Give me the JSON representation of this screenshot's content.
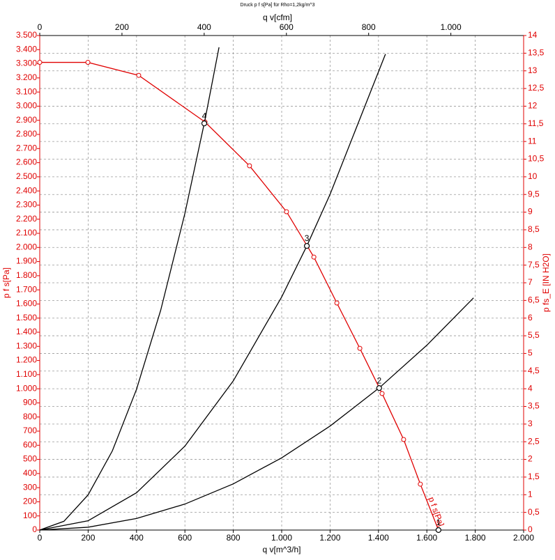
{
  "chart_data": {
    "type": "line",
    "title": "Druck p f s[Pa] für Rho=1,2kg/m^3",
    "x_label": "q v[m^3/h]",
    "x2_label": "q v[cfm]",
    "y_label": "p f s[Pa]",
    "y2_label": "p fs_E [IN H2O]",
    "xlim": [
      0,
      2000
    ],
    "xticks": [
      0,
      200,
      400,
      600,
      800,
      {
        "value": 1000,
        "label": "1.000"
      },
      {
        "value": 1200,
        "label": "1.200"
      },
      {
        "value": 1400,
        "label": "1.400"
      },
      {
        "value": 1600,
        "label": "1.600"
      },
      {
        "value": 1800,
        "label": "1.800"
      },
      {
        "value": 2000,
        "label": "2.000"
      }
    ],
    "x2lim": [
      0,
      1177
    ],
    "x2ticks": [
      0,
      200,
      400,
      600,
      800,
      {
        "value": 1000,
        "label": "1.000"
      }
    ],
    "ylim": [
      0,
      3500
    ],
    "yticks": [
      0,
      100,
      200,
      300,
      400,
      500,
      600,
      700,
      800,
      900,
      {
        "value": 1000,
        "label": "1.000"
      },
      {
        "value": 1100,
        "label": "1.100"
      },
      {
        "value": 1200,
        "label": "1.200"
      },
      {
        "value": 1300,
        "label": "1.300"
      },
      {
        "value": 1400,
        "label": "1.400"
      },
      {
        "value": 1500,
        "label": "1.500"
      },
      {
        "value": 1600,
        "label": "1.600"
      },
      {
        "value": 1700,
        "label": "1.700"
      },
      {
        "value": 1800,
        "label": "1.800"
      },
      {
        "value": 1900,
        "label": "1.900"
      },
      {
        "value": 2000,
        "label": "2.000"
      },
      {
        "value": 2100,
        "label": "2.100"
      },
      {
        "value": 2200,
        "label": "2.200"
      },
      {
        "value": 2300,
        "label": "2.300"
      },
      {
        "value": 2400,
        "label": "2.400"
      },
      {
        "value": 2500,
        "label": "2.500"
      },
      {
        "value": 2600,
        "label": "2.600"
      },
      {
        "value": 2700,
        "label": "2.700"
      },
      {
        "value": 2800,
        "label": "2.800"
      },
      {
        "value": 2900,
        "label": "2.900"
      },
      {
        "value": 3000,
        "label": "3.000"
      },
      {
        "value": 3100,
        "label": "3.100"
      },
      {
        "value": 3200,
        "label": "3.200"
      },
      {
        "value": 3300,
        "label": "3.300"
      },
      {
        "value": 3400,
        "label": "3.400"
      },
      {
        "value": 3500,
        "label": "3.500"
      }
    ],
    "y2lim": [
      0,
      14
    ],
    "y2ticks": [
      0,
      {
        "value": 0.5,
        "label": "0,5"
      },
      1,
      {
        "value": 1.5,
        "label": "1,5"
      },
      2,
      {
        "value": 2.5,
        "label": "2,5"
      },
      3,
      {
        "value": 3.5,
        "label": "3,5"
      },
      4,
      {
        "value": 4.5,
        "label": "4,5"
      },
      5,
      {
        "value": 5.5,
        "label": "5,5"
      },
      6,
      {
        "value": 6.5,
        "label": "6,5"
      },
      7,
      {
        "value": 7.5,
        "label": "7,5"
      },
      8,
      {
        "value": 8.5,
        "label": "8,5"
      },
      9,
      {
        "value": 9.5,
        "label": "9,5"
      },
      10,
      {
        "value": 10.5,
        "label": "10,5"
      },
      11,
      {
        "value": 11.5,
        "label": "11,5"
      },
      12,
      {
        "value": 12.5,
        "label": "12,5"
      },
      13,
      {
        "value": 13.5,
        "label": "13,5"
      },
      14
    ],
    "grid": true,
    "axis_color": "#e00000",
    "series": [
      {
        "name": "p f s[Pa]",
        "color": "#e00000",
        "markers": true,
        "x": [
          0,
          199,
          409,
          683,
          867,
          1020,
          1133,
          1228,
          1323,
          1415,
          1504,
          1573,
          1648
        ],
        "values": [
          3310,
          3310,
          3218,
          2888,
          2578,
          2253,
          1932,
          1607,
          1286,
          966,
          641,
          325,
          0
        ]
      },
      {
        "color": "#000000",
        "markers": false,
        "x": [
          0,
          100,
          200,
          300,
          400,
          500,
          600,
          683,
          741
        ],
        "values": [
          0,
          62,
          249,
          560,
          996,
          1556,
          2241,
          2903,
          3417
        ]
      },
      {
        "color": "#000000",
        "markers": false,
        "x": [
          0,
          200,
          400,
          600,
          800,
          1000,
          1104,
          1200,
          1429
        ],
        "values": [
          0,
          66,
          264,
          594,
          1056,
          1650,
          2011,
          2376,
          3369
        ]
      },
      {
        "color": "#000000",
        "markers": false,
        "x": [
          0,
          200,
          400,
          600,
          800,
          1000,
          1200,
          1403,
          1600,
          1793
        ],
        "values": [
          0,
          20,
          82,
          184,
          327,
          511,
          736,
          1006,
          1308,
          1643
        ]
      }
    ],
    "operating_points": {
      "labels": [
        "1",
        "2",
        "3",
        "4"
      ],
      "x": [
        1648,
        1403,
        1104,
        680
      ],
      "values": [
        0,
        1005,
        2011,
        2878
      ]
    }
  }
}
